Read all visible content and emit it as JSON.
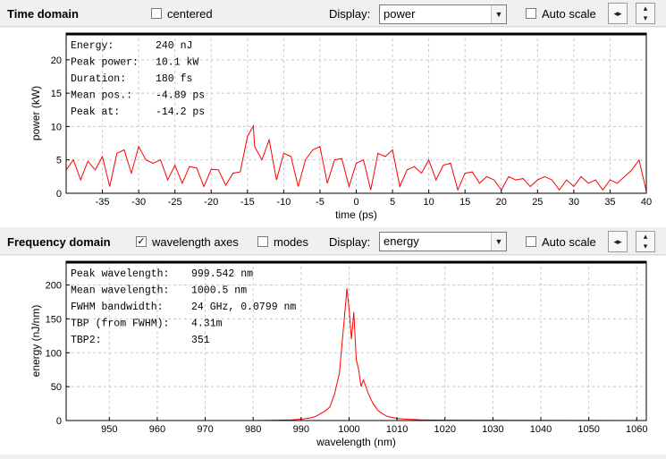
{
  "time_toolbar": {
    "title": "Time domain",
    "centered_label": "centered",
    "centered_checked": false,
    "display_label": "Display:",
    "display_value": "power",
    "autoscale_label": "Auto scale",
    "autoscale_checked": false
  },
  "freq_toolbar": {
    "title": "Frequency domain",
    "wavelength_axes_label": "wavelength axes",
    "wavelength_axes_checked": true,
    "modes_label": "modes",
    "modes_checked": false,
    "display_label": "Display:",
    "display_value": "energy",
    "autoscale_label": "Auto scale",
    "autoscale_checked": false
  },
  "time_info": [
    {
      "key": "Energy:",
      "value": "240 nJ"
    },
    {
      "key": "Peak power:",
      "value": "10.1 kW"
    },
    {
      "key": "Duration:",
      "value": "180 fs"
    },
    {
      "key": "Mean pos.:",
      "value": "-4.89 ps"
    },
    {
      "key": "Peak at:",
      "value": "-14.2 ps"
    }
  ],
  "freq_info": [
    {
      "key": "Peak wavelength:",
      "value": "999.542 nm"
    },
    {
      "key": "Mean wavelength:",
      "value": "1000.5 nm"
    },
    {
      "key": "FWHM bandwidth:",
      "value": "24 GHz, 0.0799 nm"
    },
    {
      "key": "TBP (from FWHM):",
      "value": "4.31m"
    },
    {
      "key": "TBP2:",
      "value": "351"
    }
  ],
  "chart_data": [
    {
      "type": "line",
      "xlabel": "time (ps)",
      "ylabel": "power (kW)",
      "xlim": [
        -40,
        40
      ],
      "ylim": [
        0,
        24
      ],
      "xticks": [
        -35,
        -30,
        -25,
        -20,
        -15,
        -10,
        -5,
        0,
        5,
        10,
        15,
        20,
        25,
        30,
        35,
        40
      ],
      "yticks": [
        0,
        5,
        10,
        15,
        20
      ],
      "grid": true,
      "line_color": "#ff0000",
      "series": [
        {
          "x": [
            -40,
            -39,
            -38,
            -37,
            -36,
            -35,
            -34,
            -33,
            -32,
            -31,
            -30,
            -29,
            -28,
            -27,
            -26,
            -25,
            -24,
            -23,
            -22,
            -21,
            -20,
            -19,
            -18,
            -17,
            -16,
            -15,
            -14.2,
            -14,
            -13,
            -12,
            -11,
            -10,
            -9,
            -8,
            -7,
            -6,
            -5,
            -4,
            -3,
            -2,
            -1,
            0,
            1,
            2,
            3,
            4,
            5,
            6,
            7,
            8,
            9,
            10,
            11,
            12,
            13,
            14,
            15,
            16,
            17,
            18,
            19,
            20,
            21,
            22,
            23,
            24,
            25,
            26,
            27,
            28,
            29,
            30,
            31,
            32,
            33,
            34,
            35,
            36,
            37,
            38,
            39,
            40
          ],
          "y": [
            3.5,
            5.0,
            2.0,
            4.8,
            3.5,
            5.5,
            1.0,
            6.0,
            6.5,
            3.0,
            7.0,
            5.0,
            4.5,
            5.0,
            2.0,
            4.2,
            1.5,
            4.0,
            3.8,
            1.0,
            3.6,
            3.5,
            1.2,
            3.0,
            3.2,
            8.5,
            10.1,
            7.0,
            5.0,
            8.0,
            2.0,
            6.0,
            5.5,
            1.0,
            5.0,
            6.5,
            7.0,
            1.5,
            5.0,
            5.2,
            1.0,
            4.5,
            5.0,
            0.5,
            6.0,
            5.5,
            6.5,
            1.0,
            3.5,
            4.0,
            3.0,
            5.0,
            2.0,
            4.2,
            4.5,
            0.5,
            3.0,
            3.2,
            1.5,
            2.5,
            2.0,
            0.5,
            2.5,
            2.0,
            2.2,
            1.0,
            2.0,
            2.5,
            2.0,
            0.5,
            2.0,
            1.0,
            2.5,
            1.5,
            2.0,
            0.5,
            2.0,
            1.5,
            2.5,
            3.5,
            5.0,
            0.3
          ]
        }
      ]
    },
    {
      "type": "line",
      "xlabel": "wavelength (nm)",
      "ylabel": "energy (nJ/nm)",
      "xlim": [
        941,
        1062
      ],
      "ylim": [
        0,
        235
      ],
      "xticks": [
        950,
        960,
        970,
        980,
        990,
        1000,
        1010,
        1020,
        1030,
        1040,
        1050,
        1060
      ],
      "yticks": [
        0,
        50,
        100,
        150,
        200
      ],
      "grid": true,
      "line_color": "#ff0000",
      "series": [
        {
          "x": [
            941,
            980,
            985,
            988,
            990,
            992,
            993,
            994,
            995,
            996,
            996.5,
            997,
            997.5,
            998,
            998.5,
            999,
            999.5,
            999.54,
            1000,
            1000.5,
            1001,
            1001.5,
            1002,
            1002.5,
            1003,
            1004,
            1005,
            1006,
            1007,
            1008,
            1010,
            1012,
            1015,
            1020,
            1062
          ],
          "y": [
            0,
            0,
            0.5,
            1,
            2,
            4,
            6,
            10,
            14,
            20,
            30,
            40,
            55,
            70,
            110,
            150,
            190,
            195,
            165,
            120,
            160,
            90,
            75,
            50,
            60,
            40,
            25,
            15,
            10,
            6,
            3,
            2,
            1,
            0.5,
            0
          ]
        }
      ]
    }
  ]
}
